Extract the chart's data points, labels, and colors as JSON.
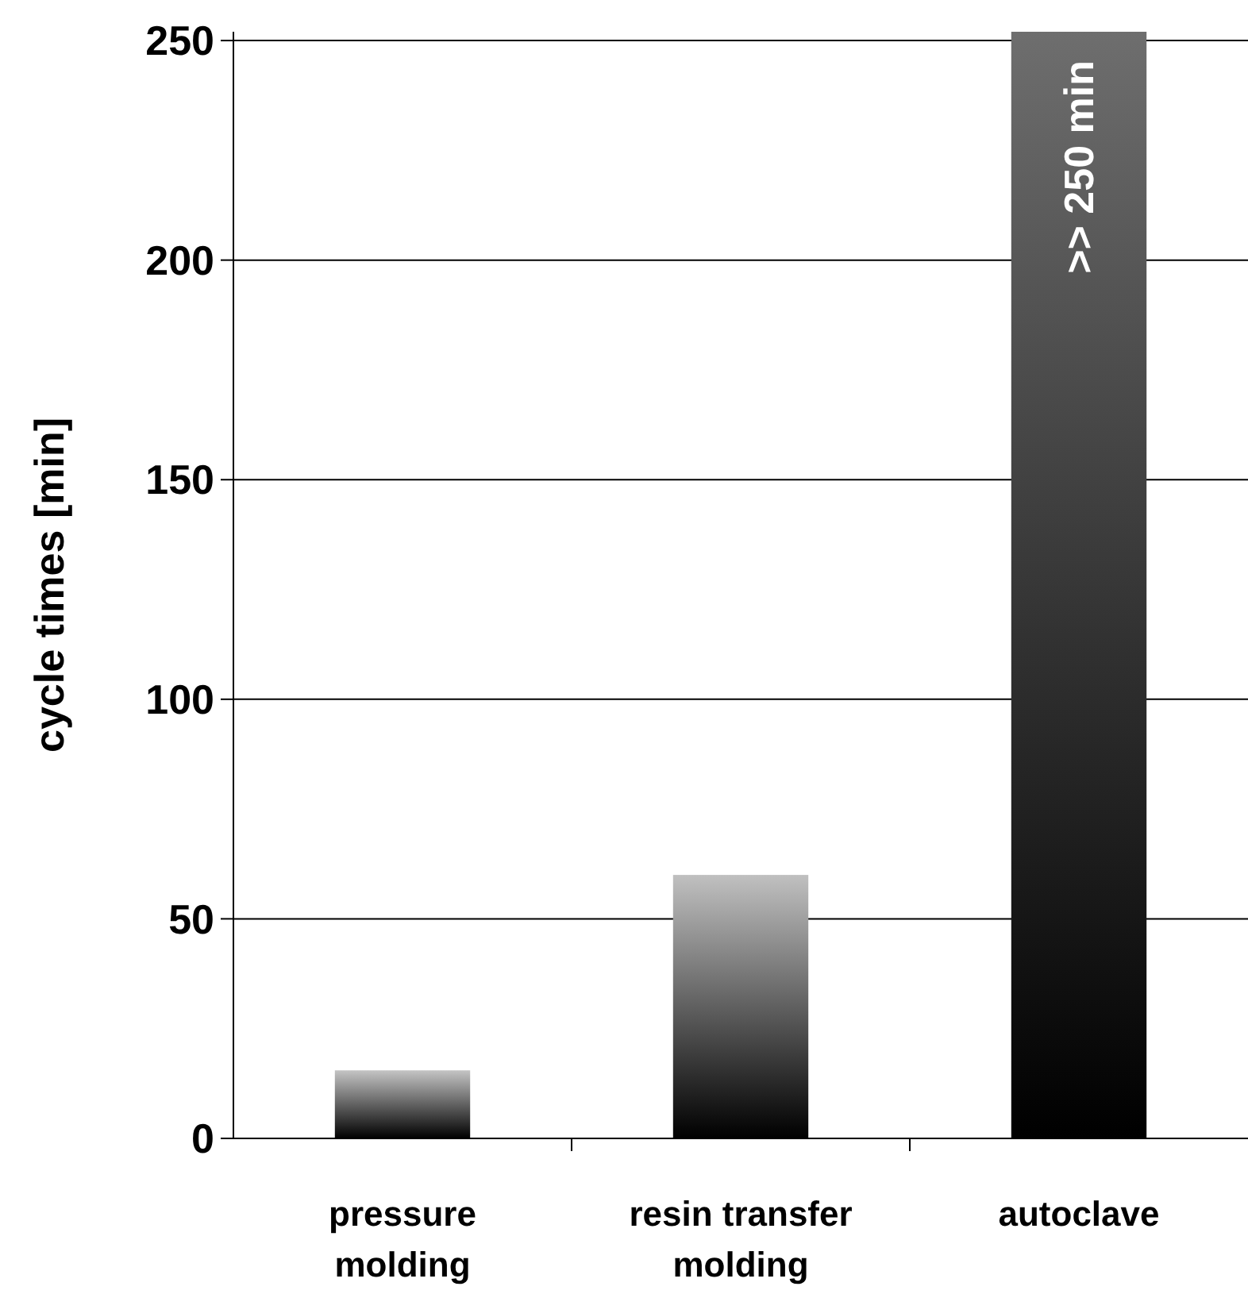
{
  "chart_data": {
    "type": "bar",
    "ylabel": "cycle times [min]",
    "categories": [
      "pressure\nmolding",
      "resin transfer\nmolding",
      "autoclave"
    ],
    "values": [
      15.5,
      60,
      252
    ],
    "colors": [
      "#c4c4c4",
      "#c0c0c0",
      "#6e6e6e"
    ],
    "ylim": [
      0,
      252
    ],
    "yticks": [
      0,
      50,
      100,
      150,
      200,
      250
    ],
    "grid": "y",
    "annotations": [
      ">> 250 min"
    ]
  }
}
